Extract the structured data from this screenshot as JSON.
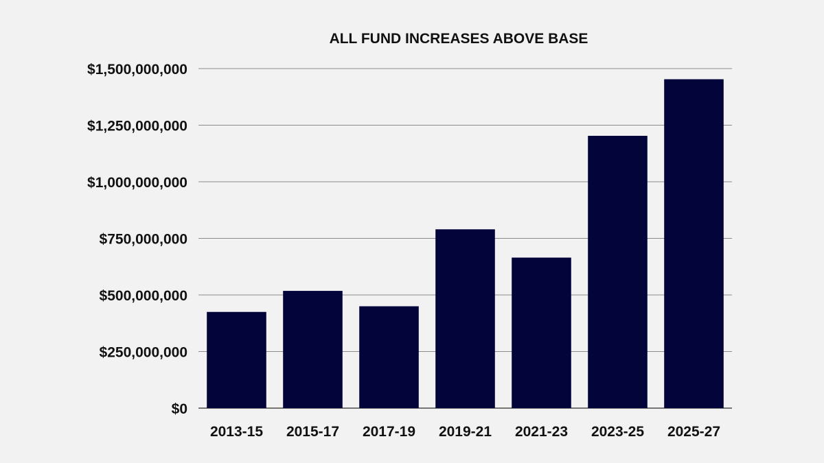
{
  "chart_data": {
    "type": "bar",
    "title": "ALL FUND INCREASES ABOVE BASE",
    "categories": [
      "2013-15",
      "2015-17",
      "2017-19",
      "2019-21",
      "2021-23",
      "2023-25",
      "2025-27"
    ],
    "values": [
      425000000,
      518000000,
      450000000,
      790000000,
      665000000,
      1203000000,
      1453000000
    ],
    "y_ticks": [
      0,
      250000000,
      500000000,
      750000000,
      1000000000,
      1250000000,
      1500000000
    ],
    "y_tick_labels": [
      "$0",
      "$250,000,000",
      "$500,000,000",
      "$750,000,000",
      "$1,000,000,000",
      "$1,250,000,000",
      "$1,500,000,000"
    ],
    "ylim": [
      0,
      1500000000
    ],
    "grid": true,
    "legend": "none",
    "xlabel": "",
    "ylabel": "",
    "bar_color": "#03053a",
    "grid_color": "#8a8a8a",
    "background_color": "#f2f2f2"
  }
}
